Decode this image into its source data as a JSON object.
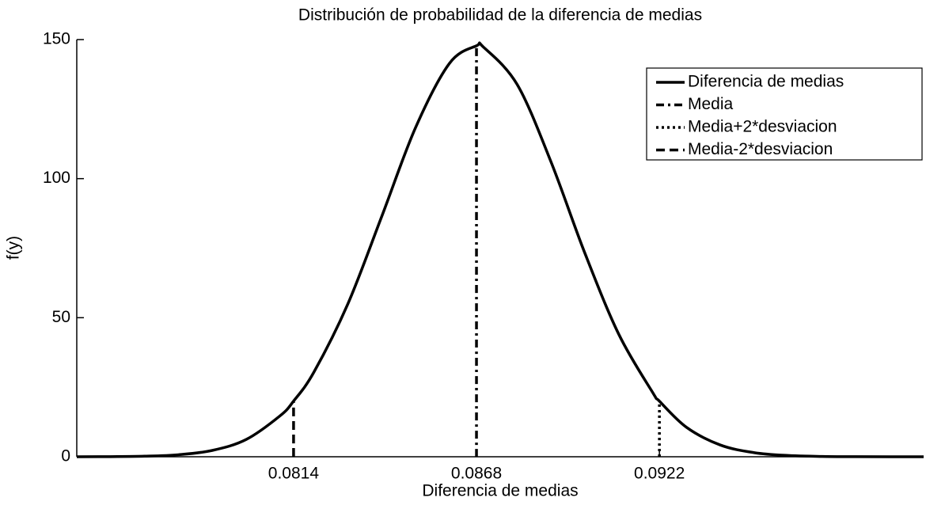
{
  "chart_data": {
    "type": "line",
    "title": "Distribución de probabilidad de la diferencia de medias",
    "xlabel": "Diferencia de medias",
    "ylabel": "f(y)",
    "xlim": [
      0.075,
      0.1
    ],
    "xticks": [
      0.0814,
      0.0868,
      0.0922
    ],
    "ylim": [
      0,
      150
    ],
    "yticks": [
      0,
      50,
      100,
      150
    ],
    "legend": "upper right",
    "grid": false,
    "series": [
      {
        "name": "Diferencia de medias",
        "color": "#000000",
        "dash": "solid",
        "x": [
          0.075,
          0.076,
          0.077,
          0.078,
          0.079,
          0.08,
          0.081,
          0.0814,
          0.082,
          0.083,
          0.084,
          0.085,
          0.086,
          0.0868,
          0.087,
          0.088,
          0.089,
          0.09,
          0.091,
          0.092,
          0.0922,
          0.093,
          0.094,
          0.095,
          0.096,
          0.097,
          0.098,
          0.099,
          0.1
        ],
        "values": [
          0.01,
          0.05,
          0.2,
          0.73,
          2.28,
          6.2,
          14.71,
          20,
          30.42,
          54.88,
          86.31,
          118.31,
          141.41,
          147.76,
          147.36,
          133.87,
          106.02,
          73.2,
          44.06,
          23.13,
          20,
          10.58,
          4.22,
          1.47,
          0.45,
          0.12,
          0.03,
          0.01,
          0
        ]
      },
      {
        "name": "Media",
        "color": "#000000",
        "dash": "dashdot",
        "x": [
          0.0868,
          0.0868
        ],
        "values": [
          0,
          147.76
        ]
      },
      {
        "name": "Media+2*desviacion",
        "color": "#000000",
        "dash": "dotted",
        "x": [
          0.0922,
          0.0922
        ],
        "values": [
          0,
          20
        ]
      },
      {
        "name": "Media-2*desviacion",
        "color": "#000000",
        "dash": "dashed",
        "x": [
          0.0814,
          0.0814
        ],
        "values": [
          0,
          20
        ]
      }
    ]
  }
}
